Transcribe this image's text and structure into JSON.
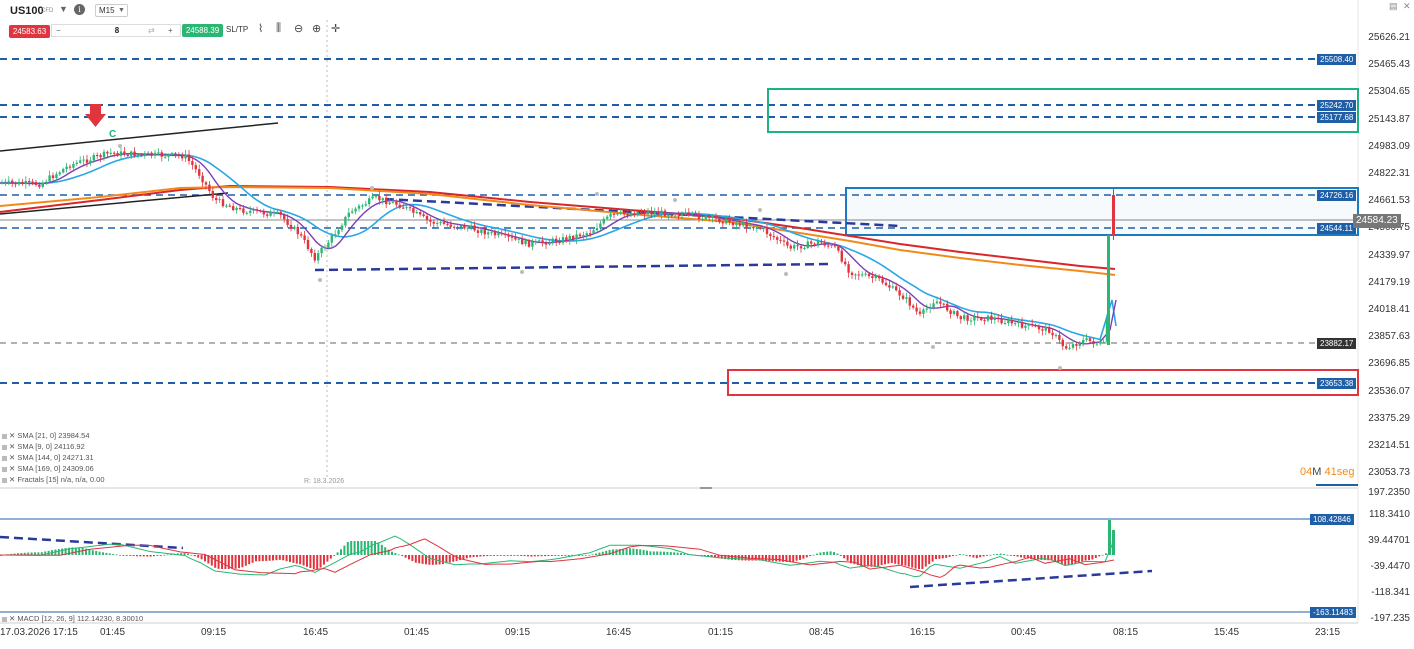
{
  "toolbar": {
    "symbol": "US100",
    "cfd": "CFD",
    "timeframe": "M15",
    "sell_price": "24583.63",
    "quantity": "8",
    "buy_price": "24588.39",
    "sltp_label": "SL/TP",
    "minus": "−",
    "plus": "+",
    "swap": "⇄",
    "icons": [
      "line-style-icon",
      "candles-icon",
      "zoom-out-icon",
      "zoom-in-icon",
      "crosshair-icon"
    ]
  },
  "price_axis": {
    "labels": [
      "25626.21",
      "25465.43",
      "25304.65",
      "25143.87",
      "24983.09",
      "24822.31",
      "24661.53",
      "24500.75",
      "24339.97",
      "24179.19",
      "24018.41",
      "23857.63",
      "23696.85",
      "23536.07",
      "23375.29",
      "23214.51",
      "23053.73"
    ],
    "level_tags": [
      {
        "text": "25508.40",
        "style": "blue"
      },
      {
        "text": "25242.70",
        "style": "blue"
      },
      {
        "text": "25177.68",
        "style": "blue"
      },
      {
        "text": "24726.16",
        "style": "blue"
      },
      {
        "text": "24544.11",
        "style": "blue"
      },
      {
        "text": "23882.17",
        "style": "dark"
      },
      {
        "text": "23653.38",
        "style": "blue"
      }
    ],
    "current_price": "24584.23"
  },
  "macd_axis": {
    "labels": [
      "197.2350",
      "118.3410",
      "39.44701",
      "-39.4470",
      "-118.341",
      "-197.235"
    ],
    "tags": [
      {
        "text": "108.42846",
        "style": "blue"
      },
      {
        "text": "-163.11483",
        "style": "blue"
      }
    ]
  },
  "time_axis": [
    "17.03.2026 17:15",
    "01:45",
    "09:15",
    "16:45",
    "01:45",
    "09:15",
    "16:45",
    "01:15",
    "08:45",
    "16:15",
    "00:45",
    "08:15",
    "15:45",
    "23:15"
  ],
  "legend": [
    "✕ SMA [21, 0] 23984.54",
    "✕ SMA [9, 0] 24116.92",
    "✕ SMA [144, 0] 24271.31",
    "✕ SMA [169, 0] 24309.06",
    "✕ Fractals [15] n/a, n/a, 0.00"
  ],
  "macd_legend": "✕ MACD [12, 26, 9] 112.14230, 8.30010",
  "crosshair_date": "R: 18.3.2026",
  "countdown": {
    "min": "04",
    "m": "M",
    "sec": "41",
    "s": "seg"
  },
  "marker_letter": "C",
  "colors": {
    "sma21": "#2aa7e6",
    "sma9": "#7b3fb8",
    "sma144": "#d9262a",
    "sma169": "#f28a1a",
    "bull": "#2bb673",
    "bear": "#e0343f",
    "level": "#1f5fa8",
    "zone_green": "#1db380",
    "zone_blue": "#1b7bc0",
    "zone_red": "#e0343f"
  }
}
